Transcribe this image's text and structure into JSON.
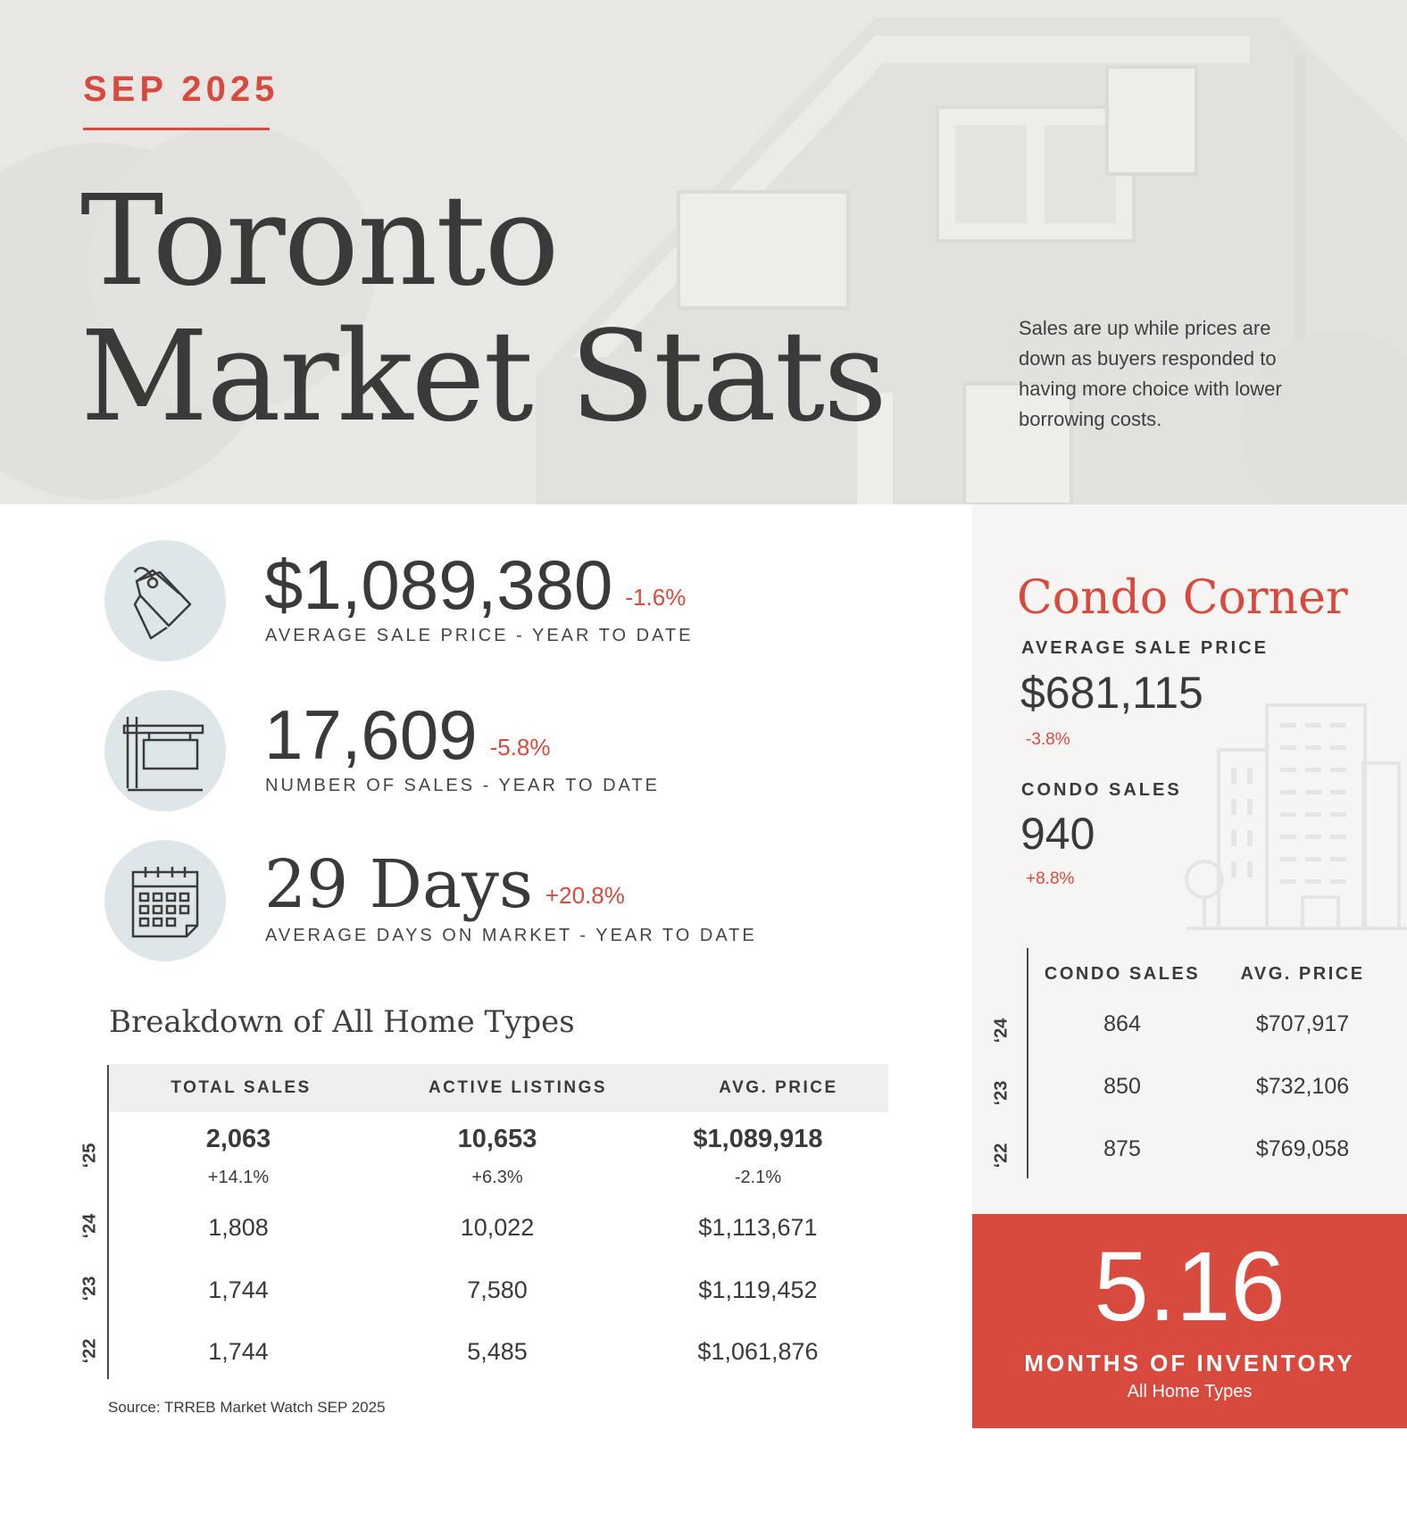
{
  "header": {
    "month": "SEP 2025",
    "title_line1": "Toronto",
    "title_line2": "Market Stats",
    "intro": "Sales are up while prices are down as buyers responded to having more choice with lower borrowing costs."
  },
  "stats": [
    {
      "icon": "price-tag-icon",
      "value": "$1,089,380",
      "change": "-1.6%",
      "label": "AVERAGE SALE PRICE - YEAR TO DATE"
    },
    {
      "icon": "sale-sign-icon",
      "value": "17,609",
      "change": "-5.8%",
      "label": "NUMBER OF SALES - YEAR TO DATE"
    },
    {
      "icon": "calendar-icon",
      "value": "29 Days",
      "change": "+20.8%",
      "label": "AVERAGE DAYS ON MARKET - YEAR TO DATE"
    }
  ],
  "breakdown": {
    "title": "Breakdown of All Home Types",
    "columns": [
      "TOTAL SALES",
      "ACTIVE LISTINGS",
      "AVG. PRICE"
    ],
    "rows": [
      {
        "year": "‘25",
        "total_sales": "2,063",
        "active_listings": "10,653",
        "avg_price": "$1,089,918",
        "total_sales_change": "+14.1%",
        "active_listings_change": "+6.3%",
        "avg_price_change": "-2.1%"
      },
      {
        "year": "‘24",
        "total_sales": "1,808",
        "active_listings": "10,022",
        "avg_price": "$1,113,671"
      },
      {
        "year": "‘23",
        "total_sales": "1,744",
        "active_listings": "7,580",
        "avg_price": "$1,119,452"
      },
      {
        "year": "‘22",
        "total_sales": "1,744",
        "active_listings": "5,485",
        "avg_price": "$1,061,876"
      }
    ],
    "source": "Source: TRREB Market Watch SEP 2025"
  },
  "condo": {
    "title": "Condo Corner",
    "avg_price_label": "AVERAGE SALE PRICE",
    "avg_price_value": "$681,115",
    "avg_price_change": "-3.8%",
    "sales_label": "CONDO SALES",
    "sales_value": "940",
    "sales_change": "+8.8%",
    "columns": [
      "CONDO SALES",
      "AVG. PRICE"
    ],
    "rows": [
      {
        "year": "‘24",
        "sales": "864",
        "avg_price": "$707,917"
      },
      {
        "year": "‘23",
        "sales": "850",
        "avg_price": "$732,106"
      },
      {
        "year": "‘22",
        "sales": "875",
        "avg_price": "$769,058"
      }
    ]
  },
  "inventory": {
    "value": "5.16",
    "label": "MONTHS OF INVENTORY",
    "sublabel": "All Home Types"
  },
  "colors": {
    "accent": "#d94a3e",
    "icon_circle": "#dde7ea",
    "hero_bg": "#e9e7e4",
    "panel_bg": "#f6f5f3"
  }
}
